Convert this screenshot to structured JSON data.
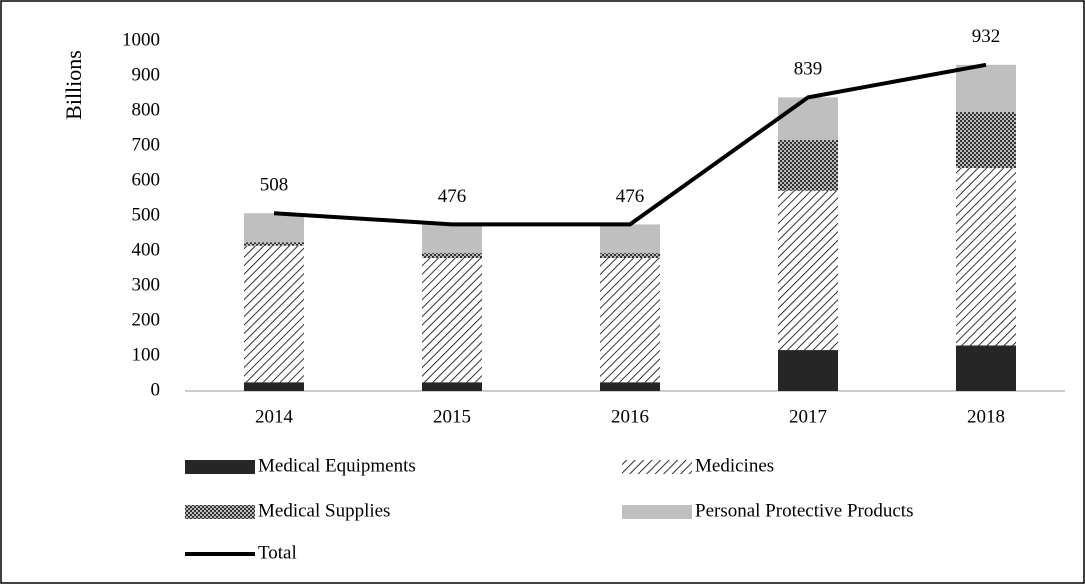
{
  "chart_data": {
    "type": "bar",
    "stacked": true,
    "y_label": "Billions",
    "categories": [
      "2014",
      "2015",
      "2016",
      "2017",
      "2018"
    ],
    "ylim": [
      0,
      1000
    ],
    "yticks": [
      0,
      100,
      200,
      300,
      400,
      500,
      600,
      700,
      800,
      900,
      1000
    ],
    "grid": false,
    "legend": "bottom",
    "series": [
      {
        "name": "Medical Equipments",
        "color": "#262626",
        "values": [
          25,
          25,
          25,
          117,
          130
        ]
      },
      {
        "name": "Medicines",
        "color": "#000000",
        "pattern": "diagonal",
        "values": [
          390,
          355,
          355,
          455,
          507
        ]
      },
      {
        "name": "Medical Supplies",
        "color": "#555555",
        "pattern": "crosshatch",
        "values": [
          10,
          14,
          14,
          145,
          160
        ]
      },
      {
        "name": "Personal Protective Products",
        "color": "#bfbfbf",
        "values": [
          83,
          82,
          82,
          122,
          135
        ]
      },
      {
        "name": "Total",
        "type": "line",
        "color": "#000000",
        "values": [
          508,
          476,
          476,
          839,
          932
        ]
      }
    ]
  }
}
